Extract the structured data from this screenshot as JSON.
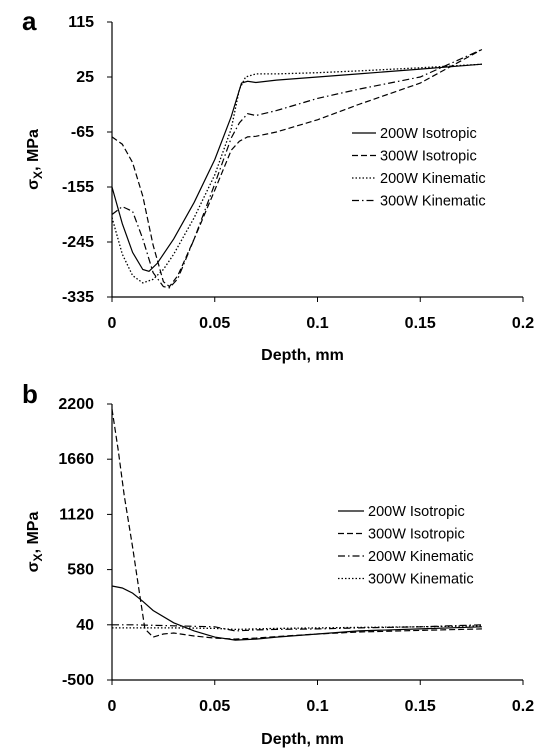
{
  "chart_data": [
    {
      "panel_label": "a",
      "type": "line",
      "xlabel": "Depth, mm",
      "ylabel": "σx, MPa",
      "ylabel_main": "σ",
      "ylabel_sub": "X",
      "ylabel_rest": ", MPa",
      "xlim": [
        0,
        0.2
      ],
      "ylim": [
        -335,
        115
      ],
      "x_ticks": [
        0,
        0.05,
        0.1,
        0.15,
        0.2
      ],
      "x_tick_labels": [
        "0",
        "0.05",
        "0.1",
        "0.15",
        "0.2"
      ],
      "y_ticks": [
        115,
        25,
        -65,
        -155,
        -245,
        -335
      ],
      "y_tick_labels": [
        "115",
        "25",
        "-65",
        "-155",
        "-245",
        "-335"
      ],
      "grid": false,
      "legend_position": "right-center",
      "series": [
        {
          "name": "200W Isotropic",
          "dash": "solid",
          "x": [
            0,
            0.005,
            0.01,
            0.015,
            0.018,
            0.022,
            0.03,
            0.04,
            0.05,
            0.058,
            0.063,
            0.066,
            0.07,
            0.08,
            0.1,
            0.12,
            0.15,
            0.18
          ],
          "y": [
            -155,
            -215,
            -262,
            -290,
            -293,
            -280,
            -240,
            -180,
            -110,
            -40,
            15,
            18,
            16,
            20,
            25,
            30,
            38,
            46
          ]
        },
        {
          "name": "300W Isotropic",
          "dash": "dashed",
          "x": [
            0,
            0.005,
            0.01,
            0.015,
            0.02,
            0.025,
            0.028,
            0.032,
            0.04,
            0.05,
            0.058,
            0.062,
            0.066,
            0.07,
            0.08,
            0.1,
            0.12,
            0.15,
            0.18
          ],
          "y": [
            -73,
            -85,
            -115,
            -170,
            -250,
            -310,
            -318,
            -300,
            -240,
            -160,
            -95,
            -80,
            -73,
            -72,
            -65,
            -45,
            -20,
            15,
            70
          ]
        },
        {
          "name": "200W Kinematic",
          "dash": "dotted",
          "x": [
            0,
            0.005,
            0.01,
            0.015,
            0.02,
            0.025,
            0.03,
            0.04,
            0.05,
            0.058,
            0.062,
            0.065,
            0.07,
            0.08,
            0.1,
            0.12,
            0.15,
            0.18
          ],
          "y": [
            -205,
            -265,
            -300,
            -312,
            -306,
            -290,
            -265,
            -205,
            -135,
            -60,
            5,
            25,
            30,
            30,
            32,
            35,
            40,
            46
          ]
        },
        {
          "name": "300W Kinematic",
          "dash": "dashdot",
          "x": [
            0,
            0.005,
            0.01,
            0.015,
            0.02,
            0.025,
            0.028,
            0.032,
            0.04,
            0.05,
            0.058,
            0.062,
            0.066,
            0.07,
            0.08,
            0.1,
            0.12,
            0.15,
            0.18
          ],
          "y": [
            -200,
            -187,
            -195,
            -240,
            -295,
            -318,
            -320,
            -305,
            -240,
            -150,
            -75,
            -50,
            -35,
            -38,
            -30,
            -10,
            5,
            25,
            70
          ]
        }
      ]
    },
    {
      "panel_label": "b",
      "type": "line",
      "xlabel": "Depth, mm",
      "ylabel": "σx, MPa",
      "ylabel_main": "σ",
      "ylabel_sub": "X",
      "ylabel_rest": ", MPa",
      "xlim": [
        0,
        0.2
      ],
      "ylim": [
        -500,
        2200
      ],
      "x_ticks": [
        0,
        0.05,
        0.1,
        0.15,
        0.2
      ],
      "x_tick_labels": [
        "0",
        "0.05",
        "0.1",
        "0.15",
        "0.2"
      ],
      "y_ticks": [
        2200,
        1660,
        1120,
        580,
        40,
        -500
      ],
      "y_tick_labels": [
        "2200",
        "1660",
        "1120",
        "580",
        "40",
        "-500"
      ],
      "grid": false,
      "legend_position": "right-center",
      "series": [
        {
          "name": "200W Isotropic",
          "dash": "solid",
          "x": [
            0,
            0.005,
            0.01,
            0.015,
            0.02,
            0.03,
            0.04,
            0.05,
            0.06,
            0.07,
            0.08,
            0.1,
            0.12,
            0.15,
            0.18
          ],
          "y": [
            420,
            400,
            350,
            270,
            180,
            60,
            -20,
            -80,
            -110,
            -100,
            -80,
            -50,
            -20,
            0,
            20
          ]
        },
        {
          "name": "300W Isotropic",
          "dash": "dashed",
          "x": [
            0,
            0.003,
            0.006,
            0.01,
            0.013,
            0.016,
            0.02,
            0.025,
            0.03,
            0.04,
            0.05,
            0.06,
            0.07,
            0.08,
            0.1,
            0.12,
            0.15,
            0.18
          ],
          "y": [
            2150,
            1750,
            1300,
            800,
            400,
            0,
            -80,
            -50,
            -40,
            -70,
            -90,
            -100,
            -90,
            -75,
            -50,
            -30,
            -15,
            0
          ]
        },
        {
          "name": "200W Kinematic",
          "dash": "dashdot",
          "x": [
            0,
            0.01,
            0.02,
            0.03,
            0.04,
            0.05,
            0.06,
            0.07,
            0.08,
            0.1,
            0.12,
            0.15,
            0.18
          ],
          "y": [
            40,
            40,
            35,
            30,
            25,
            20,
            -20,
            -10,
            -5,
            0,
            10,
            20,
            40
          ]
        },
        {
          "name": "300W Kinematic",
          "dash": "dotted",
          "x": [
            0,
            0.01,
            0.02,
            0.03,
            0.04,
            0.05,
            0.06,
            0.07,
            0.08,
            0.1,
            0.12,
            0.15,
            0.18
          ],
          "y": [
            10,
            10,
            10,
            10,
            8,
            5,
            -5,
            0,
            5,
            10,
            15,
            20,
            30
          ]
        }
      ]
    }
  ]
}
